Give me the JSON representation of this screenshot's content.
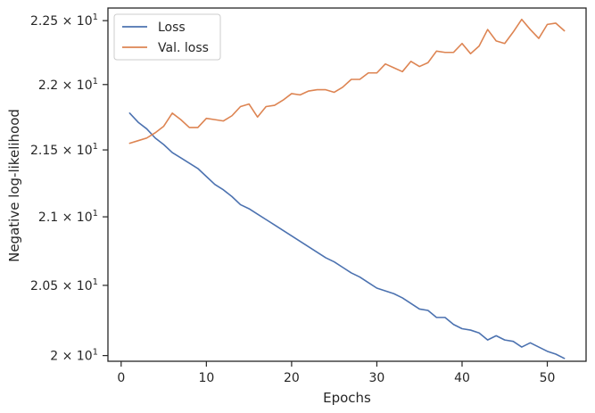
{
  "chart_data": {
    "type": "line",
    "xlabel": "Epochs",
    "ylabel": "Negative log-likelihood",
    "xlim": [
      -1.55,
      54.55
    ],
    "ylim": [
      19.96,
      22.6
    ],
    "yscale": "log",
    "grid": false,
    "legend_position": "top-left",
    "xticks": [
      0,
      10,
      20,
      30,
      40,
      50
    ],
    "xtick_labels": [
      "0",
      "10",
      "20",
      "30",
      "40",
      "50"
    ],
    "yticks": [
      {
        "value": 20.0,
        "mantissa": "2",
        "exponent": "1"
      },
      {
        "value": 20.5,
        "mantissa": "2.05",
        "exponent": "1"
      },
      {
        "value": 21.0,
        "mantissa": "2.1",
        "exponent": "1"
      },
      {
        "value": 21.5,
        "mantissa": "2.15",
        "exponent": "1"
      },
      {
        "value": 22.0,
        "mantissa": "2.2",
        "exponent": "1"
      },
      {
        "value": 22.5,
        "mantissa": "2.25",
        "exponent": "1"
      }
    ],
    "x": [
      1,
      2,
      3,
      4,
      5,
      6,
      7,
      8,
      9,
      10,
      11,
      12,
      13,
      14,
      15,
      16,
      17,
      18,
      19,
      20,
      21,
      22,
      23,
      24,
      25,
      26,
      27,
      28,
      29,
      30,
      31,
      32,
      33,
      34,
      35,
      36,
      37,
      38,
      39,
      40,
      41,
      42,
      43,
      44,
      45,
      46,
      47,
      48,
      49,
      50,
      51,
      52
    ],
    "series": [
      {
        "name": "Loss",
        "color": "#4c72b0",
        "values": [
          21.78,
          21.71,
          21.66,
          21.59,
          21.54,
          21.48,
          21.44,
          21.4,
          21.36,
          21.3,
          21.24,
          21.2,
          21.15,
          21.09,
          21.06,
          21.02,
          20.98,
          20.94,
          20.9,
          20.86,
          20.82,
          20.78,
          20.74,
          20.7,
          20.67,
          20.63,
          20.59,
          20.56,
          20.52,
          20.48,
          20.46,
          20.44,
          20.41,
          20.37,
          20.33,
          20.32,
          20.27,
          20.27,
          20.22,
          20.19,
          20.18,
          20.16,
          20.11,
          20.14,
          20.11,
          20.1,
          20.06,
          20.09,
          20.06,
          20.03,
          20.01,
          19.98
        ]
      },
      {
        "name": "Val. loss",
        "color": "#dd8452",
        "values": [
          21.55,
          21.57,
          21.59,
          21.63,
          21.68,
          21.78,
          21.73,
          21.67,
          21.67,
          21.74,
          21.73,
          21.72,
          21.76,
          21.83,
          21.85,
          21.75,
          21.83,
          21.84,
          21.88,
          21.93,
          21.92,
          21.95,
          21.96,
          21.96,
          21.94,
          21.98,
          22.04,
          22.04,
          22.09,
          22.09,
          22.16,
          22.13,
          22.1,
          22.18,
          22.14,
          22.17,
          22.26,
          22.25,
          22.25,
          22.32,
          22.24,
          22.3,
          22.43,
          22.34,
          22.32,
          22.41,
          22.51,
          22.43,
          22.36,
          22.47,
          22.48,
          22.42
        ]
      }
    ]
  }
}
